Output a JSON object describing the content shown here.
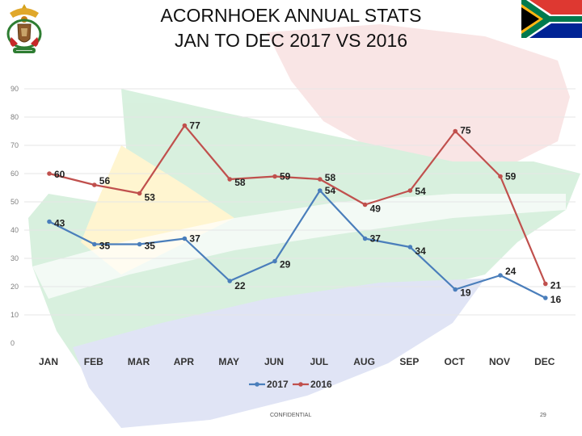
{
  "title_line1": "ACORNHOEK ANNUAL STATS",
  "title_line2": "JAN TO DEC 2017 VS 2016",
  "footer": {
    "confidential": "CONFIDENTIAL",
    "page_number": "29"
  },
  "colors": {
    "series_2017": "#4a7ebb",
    "series_2016": "#c0504d",
    "grid": "#e6e6e6",
    "axis_text": "#7f7f7f",
    "label_text": "#222222",
    "map_green": "#ccebd4",
    "map_yellow": "#fff3c4",
    "map_red": "#f7dada",
    "map_blue": "#d9def2"
  },
  "chart_data": {
    "type": "line",
    "title": "ACORNHOEK ANNUAL STATS JAN TO DEC 2017 VS 2016",
    "xlabel": "",
    "ylabel": "",
    "categories": [
      "JAN",
      "FEB",
      "MAR",
      "APR",
      "MAY",
      "JUN",
      "JUL",
      "AUG",
      "SEP",
      "OCT",
      "NOV",
      "DEC"
    ],
    "ylim": [
      0,
      90
    ],
    "yticks": [
      0,
      10,
      20,
      30,
      40,
      50,
      60,
      70,
      80,
      90
    ],
    "grid": true,
    "legend_position": "bottom-center",
    "series": [
      {
        "name": "2017",
        "color": "#4a7ebb",
        "values": [
          43,
          35,
          35,
          37,
          22,
          29,
          54,
          37,
          34,
          19,
          24,
          16
        ]
      },
      {
        "name": "2016",
        "color": "#c0504d",
        "values": [
          60,
          56,
          53,
          77,
          58,
          59,
          58,
          49,
          54,
          75,
          59,
          21
        ]
      }
    ]
  }
}
